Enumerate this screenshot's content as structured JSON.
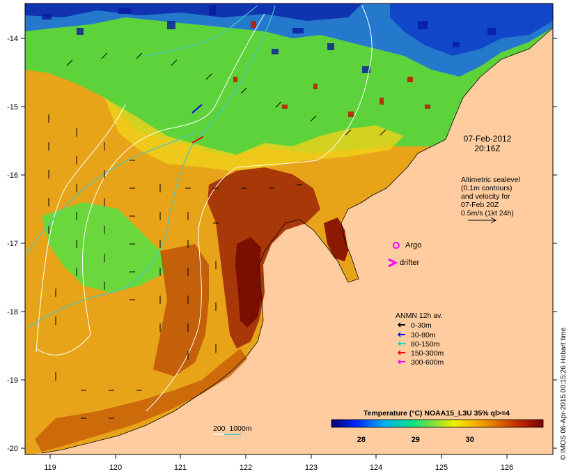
{
  "map": {
    "lon_ticks": [
      "119",
      "120",
      "121",
      "122",
      "123",
      "124",
      "125",
      "126"
    ],
    "lat_ticks": [
      "-14",
      "-15",
      "-16",
      "-17",
      "-18",
      "-19",
      "-20"
    ],
    "lon_range": [
      118.65,
      126.75
    ],
    "lat_range": [
      -20.05,
      -13.55
    ]
  },
  "timestamp": {
    "date": "07-Feb-2012",
    "time": "20:16Z"
  },
  "altimetry_note": {
    "lines": [
      "Altimetric sealevel",
      "(0.1m contours)",
      "and velocity for",
      "07-Feb 20Z",
      "0.5m/s (1kt 24h)"
    ]
  },
  "markers": {
    "argo_label": "Argo",
    "drifter_label": "drifter"
  },
  "anmn": {
    "title": "ANMN 12h av.",
    "items": [
      {
        "label": "0-30m",
        "color": "#000000"
      },
      {
        "label": "30-80m",
        "color": "#0000ff"
      },
      {
        "label": "80-150m",
        "color": "#00d8d8"
      },
      {
        "label": "150-300m",
        "color": "#ff0000"
      },
      {
        "label": "300-600m",
        "color": "#ff00ff"
      }
    ]
  },
  "bathymetry_label": "200  1000m",
  "colorbar": {
    "title": "Temperature (°C) NOAA15_L3U 35% ql>=4",
    "ticks": [
      "28",
      "29",
      "30"
    ],
    "tick_values": [
      28,
      29,
      30
    ],
    "range": [
      27.45,
      31.35
    ]
  },
  "credit": "© IMOS 06-Apr-2015 00:15:26 Hobart time",
  "colors": {
    "land": "#fecc9e",
    "warm": "#8b1a00",
    "cool": "#0016a8",
    "contour_alt": "#ffffff",
    "contour_bathy": "#3fc8c8"
  }
}
